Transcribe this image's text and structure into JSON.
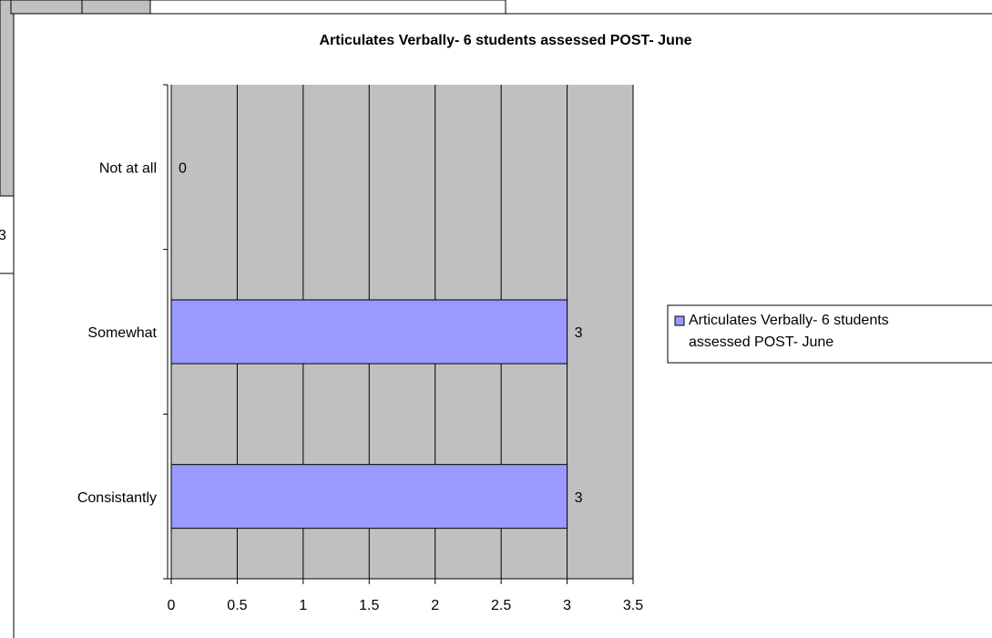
{
  "sheet": {
    "cell_text": "3"
  },
  "chart_data": {
    "type": "barh",
    "title": "Articulates Verbally- 6 students assessed POST- June",
    "categories": [
      "Not at all",
      "Somewhat",
      "Consistantly"
    ],
    "series": [
      {
        "name": "Articulates Verbally- 6 students assessed POST- June",
        "color": "#9999ff",
        "values": [
          0,
          3,
          3
        ]
      }
    ],
    "xlim": [
      0,
      3.5
    ],
    "xticks": [
      0,
      0.5,
      1,
      1.5,
      2,
      2.5,
      3,
      3.5
    ],
    "grid": true,
    "legend": "right",
    "plot_background": "#c0c0c0"
  }
}
